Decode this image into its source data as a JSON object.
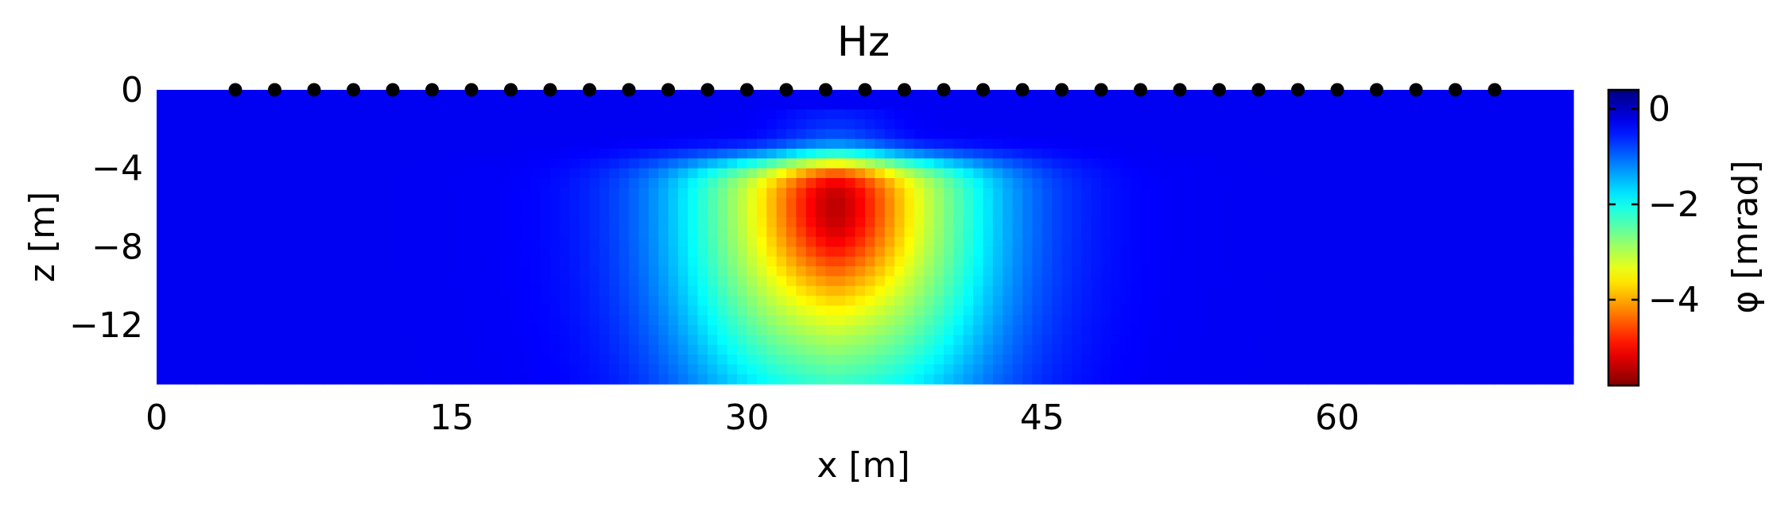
{
  "chart_data": {
    "type": "heatmap",
    "title": "Hz",
    "xlabel": "x [m]",
    "ylabel": "z [m]",
    "colorbar_label": "φ [mrad]",
    "xlim": [
      0,
      72
    ],
    "ylim": [
      -15,
      0
    ],
    "x_ticks": [
      0,
      15,
      30,
      45,
      60
    ],
    "x_tick_labels": [
      "0",
      "15",
      "30",
      "45",
      "60"
    ],
    "y_ticks": [
      0,
      -4,
      -8,
      -12
    ],
    "y_tick_labels": [
      "0",
      "−4",
      "−8",
      "−12"
    ],
    "colormap": "jet",
    "clim": [
      -5.8,
      0.4
    ],
    "colorbar_ticks": [
      0,
      -2,
      -4
    ],
    "colorbar_tick_labels": [
      "0",
      "−2",
      "−4"
    ],
    "anomaly": {
      "center_x": 34.5,
      "center_z": -6.0,
      "min_value": -5.8,
      "background_value": -0.3
    },
    "electrodes": {
      "z": 0,
      "x": [
        4,
        6,
        8,
        10,
        12,
        14,
        16,
        18,
        20,
        22,
        24,
        26,
        28,
        30,
        32,
        34,
        36,
        38,
        40,
        42,
        44,
        46,
        48,
        50,
        52,
        54,
        56,
        58,
        60,
        62,
        64,
        66,
        68
      ],
      "color": "#000000"
    },
    "grid": false,
    "legend": "none"
  }
}
